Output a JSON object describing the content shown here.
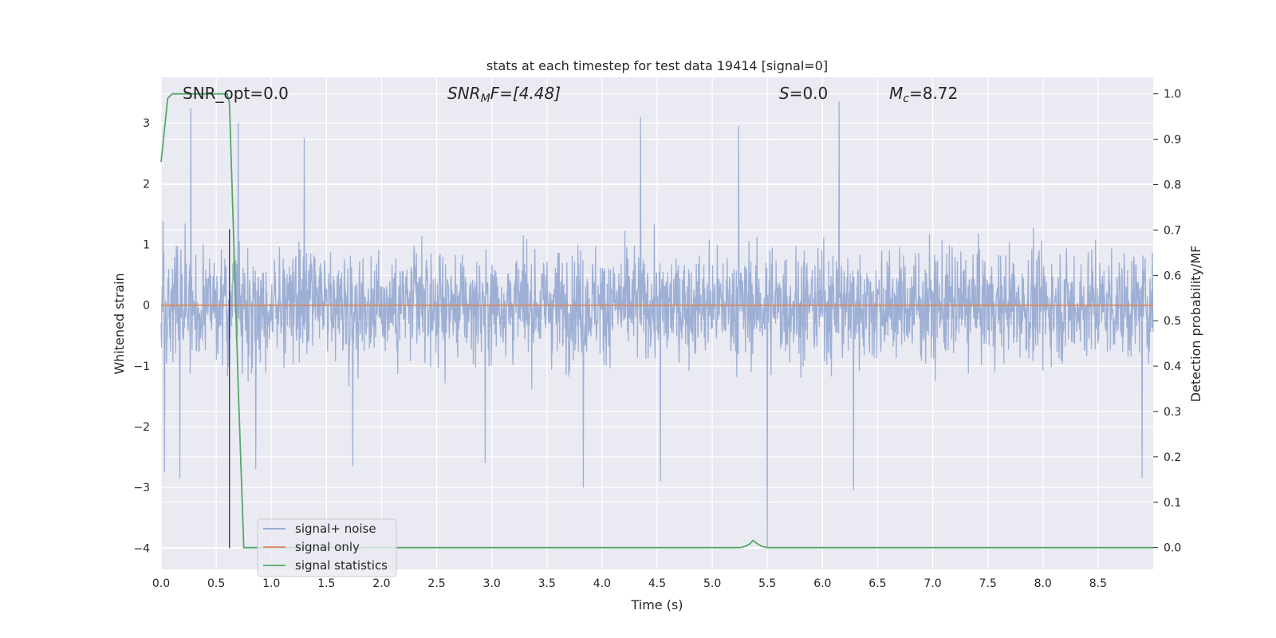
{
  "chart_data": {
    "type": "line",
    "title": "stats at each timestep for test data 19414 [signal=0]",
    "xlabel": "Time (s)",
    "ylabel": "Whitened strain",
    "ylabel_right": "Detection probability/MF",
    "xlim": [
      0.0,
      9.0
    ],
    "ylim_left": [
      -4.35,
      3.75
    ],
    "ylim_right": [
      -0.048,
      1.0364
    ],
    "x_ticks": [
      "0.0",
      "0.5",
      "1.0",
      "1.5",
      "2.0",
      "2.5",
      "3.0",
      "3.5",
      "4.0",
      "4.5",
      "5.0",
      "5.5",
      "6.0",
      "6.5",
      "7.0",
      "7.5",
      "8.0",
      "8.5"
    ],
    "y_ticks_left": [
      "3",
      "2",
      "1",
      "0",
      "−1",
      "−2",
      "−3",
      "−4"
    ],
    "y_ticks_right": [
      "1.0",
      "0.9",
      "0.8",
      "0.7",
      "0.6",
      "0.5",
      "0.4",
      "0.3",
      "0.2",
      "0.1",
      "0.0"
    ],
    "grid": true,
    "legend_position": "lower-left",
    "annotations": {
      "snr_opt": "SNR_opt=0.0",
      "snr_mf_label": "SNR",
      "snr_mf_sub": "M",
      "snr_mf_rest": "F=[4.48]",
      "s_label": "S",
      "s_value": "=0.0",
      "mc_label": "M",
      "mc_sub": "c",
      "mc_value": "=8.72"
    },
    "series": [
      {
        "name": "signal+ noise",
        "color": "#8fa5cf",
        "axis": "left",
        "description_level": "noise",
        "envelope_typical": 1.6,
        "spike_points": [
          [
            0.03,
            -2.75
          ],
          [
            0.17,
            -2.85
          ],
          [
            0.27,
            3.25
          ],
          [
            0.7,
            3.0
          ],
          [
            0.86,
            -2.7
          ],
          [
            1.3,
            2.75
          ],
          [
            1.74,
            -2.65
          ],
          [
            2.94,
            -2.6
          ],
          [
            3.83,
            -3.0
          ],
          [
            4.35,
            3.1
          ],
          [
            4.53,
            -2.9
          ],
          [
            5.24,
            2.95
          ],
          [
            5.5,
            -4.0
          ],
          [
            6.15,
            3.35
          ],
          [
            6.28,
            -3.05
          ],
          [
            8.9,
            -2.85
          ]
        ]
      },
      {
        "name": "signal only",
        "color": "#dd8452",
        "axis": "left",
        "x": [
          0.0,
          9.0
        ],
        "y": [
          0.0,
          0.0
        ]
      },
      {
        "name": "signal statistics",
        "color": "#55a868",
        "axis": "right",
        "x": [
          0.0,
          0.06,
          0.1,
          0.15,
          0.6,
          0.62,
          0.65,
          0.7,
          0.75,
          5.25,
          5.3,
          5.34,
          5.37,
          5.4,
          5.45,
          5.5,
          9.0
        ],
        "y": [
          0.85,
          0.99,
          1.0,
          1.0,
          1.0,
          0.98,
          0.75,
          0.35,
          0.0,
          0.0,
          0.003,
          0.008,
          0.016,
          0.01,
          0.003,
          0.0,
          0.0
        ]
      }
    ],
    "marker_line": {
      "x": 0.62,
      "y_from": -4.0,
      "y_to": 1.25
    }
  }
}
